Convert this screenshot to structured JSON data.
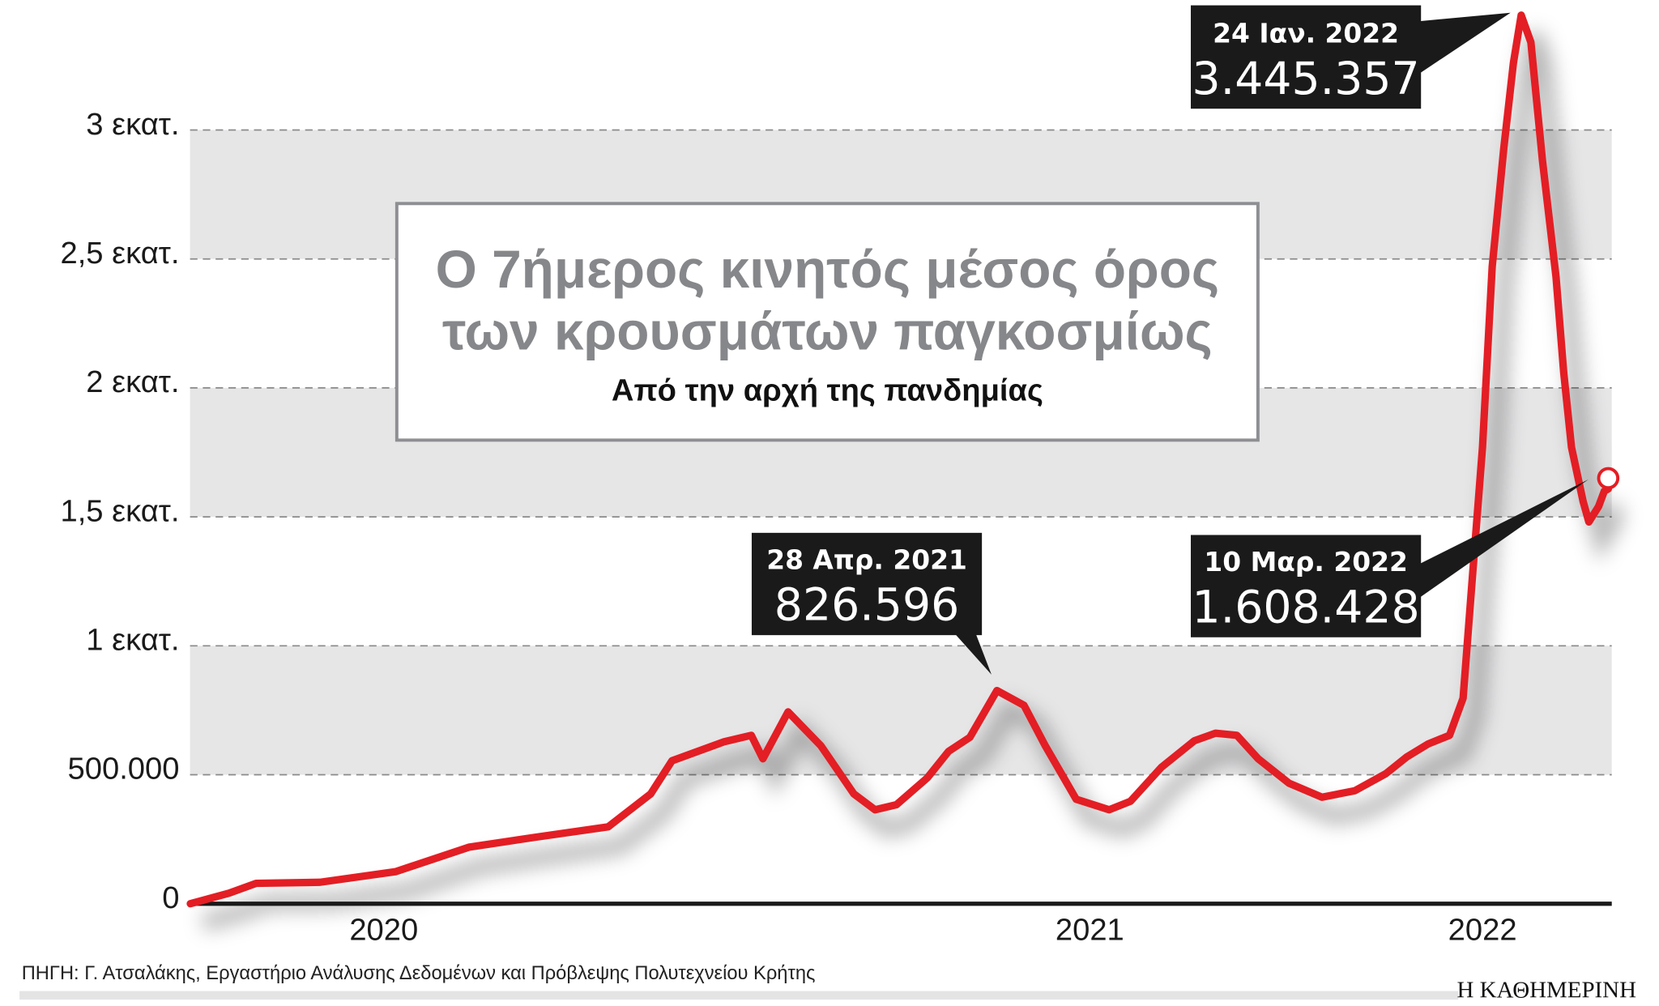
{
  "chart_data": {
    "type": "line",
    "title": "Ο 7ήμερος κινητός μέσος όρος",
    "title_line2": "των κρουσμάτων παγκοσμίως",
    "subtitle": "Από την αρχή της πανδημίας",
    "xlabel": "",
    "ylabel": "",
    "ylim": [
      0,
      3500000
    ],
    "grid": true,
    "y_ticks": [
      {
        "value": 0,
        "label": "0"
      },
      {
        "value": 500000,
        "label": "500.000"
      },
      {
        "value": 1000000,
        "label": "1 εκατ."
      },
      {
        "value": 1500000,
        "label": "1,5 εκατ."
      },
      {
        "value": 2000000,
        "label": "2 εκατ."
      },
      {
        "value": 2500000,
        "label": "2,5 εκατ."
      },
      {
        "value": 3000000,
        "label": "3 εκατ."
      }
    ],
    "x_ticks": [
      {
        "label": "2020",
        "date": "2020-06-15"
      },
      {
        "label": "2021",
        "date": "2021-06-15"
      },
      {
        "label": "2022",
        "date": "2022-01-04"
      }
    ],
    "line_color": "#e31e24",
    "band_color": "#e6e6e7",
    "series": [
      {
        "x": [
          "2020-03-07",
          "2020-03-27",
          "2020-04-10",
          "2020-05-13",
          "2020-06-21",
          "2020-07-29",
          "2020-08-31",
          "2020-10-09",
          "2020-10-31",
          "2020-11-11",
          "2020-12-08",
          "2020-12-22",
          "2020-12-28",
          "2021-01-10",
          "2021-01-27",
          "2021-02-13",
          "2021-02-24",
          "2021-03-07",
          "2021-03-23",
          "2021-04-03",
          "2021-04-14",
          "2021-04-28",
          "2021-05-12",
          "2021-05-23",
          "2021-06-08",
          "2021-06-25",
          "2021-07-06",
          "2021-07-22",
          "2021-08-08",
          "2021-08-19",
          "2021-08-30",
          "2021-09-10",
          "2021-09-26",
          "2021-10-13",
          "2021-10-30",
          "2021-11-15",
          "2021-11-26",
          "2021-12-07",
          "2021-12-18",
          "2021-12-25",
          "2021-12-29",
          "2022-01-04",
          "2022-01-09",
          "2022-01-15",
          "2022-01-20",
          "2022-01-24",
          "2022-01-29",
          "2022-02-04",
          "2022-02-11",
          "2022-02-15",
          "2022-02-19",
          "2022-02-25",
          "2022-02-28",
          "2022-03-05",
          "2022-03-08",
          "2022-03-10"
        ],
        "y": [
          0,
          41000,
          79000,
          83000,
          124000,
          219000,
          256000,
          298000,
          426000,
          554000,
          628000,
          653000,
          562000,
          744000,
          612000,
          426000,
          364000,
          384000,
          488000,
          591000,
          645000,
          826596,
          769000,
          612000,
          405000,
          364000,
          397000,
          529000,
          632000,
          661000,
          653000,
          562000,
          467000,
          413000,
          438000,
          504000,
          570000,
          620000,
          653000,
          797000,
          1190000,
          1770000,
          2470000,
          2930000,
          3260000,
          3445357,
          3340000,
          2880000,
          2430000,
          2060000,
          1770000,
          1560000,
          1480000,
          1540000,
          1600000,
          1608428
        ]
      }
    ],
    "annotations": [
      {
        "date_label": "24 Ιαν. 2022",
        "value_label": "3.445.357",
        "date": "2022-01-24",
        "value": 3445357
      },
      {
        "date_label": "28 Απρ. 2021",
        "value_label": "826.596",
        "date": "2021-04-28",
        "value": 826596
      },
      {
        "date_label": "10 Μαρ. 2022",
        "value_label": "1.608.428",
        "date": "2022-03-10",
        "value": 1608428
      }
    ]
  },
  "footer": {
    "source": "ΠΗΓΗ: Γ. Ατσαλάκης, Εργαστήριο Ανάλυσης Δεδομένων και Πρόβλεψης Πολυτεχνείου Κρήτης",
    "logo": "Η ΚΑΘΗΜΕΡΙΝΗ"
  }
}
